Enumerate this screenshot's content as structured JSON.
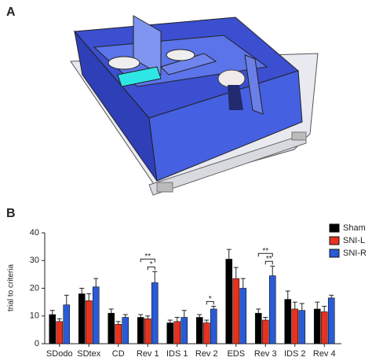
{
  "panel_labels": [
    "A",
    "B"
  ],
  "chart_data": {
    "type": "bar",
    "ylabel": "trial to criteria",
    "categories": [
      "SDodo",
      "SDtex",
      "CD",
      "Rev 1",
      "IDS 1",
      "Rev 2",
      "EDS",
      "Rev 3",
      "IDS 2",
      "Rev 4"
    ],
    "series": [
      {
        "name": "Sham",
        "color": "#000000",
        "values": [
          10.5,
          18,
          11,
          9.5,
          7.5,
          9.5,
          30.5,
          11,
          16,
          12.5
        ],
        "errors": [
          1.5,
          2,
          1.5,
          1,
          1,
          1,
          3.5,
          1.5,
          3,
          2.5
        ]
      },
      {
        "name": "SNI-L",
        "color": "#e8311f",
        "values": [
          8,
          15.5,
          7,
          9,
          8,
          7.5,
          23.5,
          8.5,
          12.5,
          11.5
        ],
        "errors": [
          1,
          2.5,
          1,
          1,
          1.5,
          1,
          4,
          1,
          2.5,
          2
        ]
      },
      {
        "name": "SNI-R",
        "color": "#2a5bd7",
        "values": [
          14,
          20.5,
          9.5,
          22,
          9.5,
          12.5,
          20,
          24.5,
          12,
          16.5
        ],
        "errors": [
          3.5,
          3,
          1,
          4,
          2.5,
          1,
          3.5,
          3.5,
          2.5,
          1
        ]
      }
    ],
    "annotations": [
      "**",
      "*",
      "*",
      "**",
      "**"
    ],
    "ylim": [
      0,
      40
    ],
    "yticks": [
      0,
      10,
      20,
      30,
      40
    ]
  }
}
